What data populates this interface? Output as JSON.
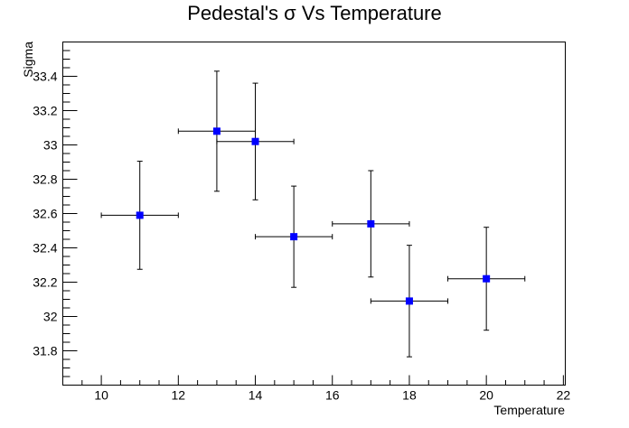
{
  "chart_data": {
    "type": "scatter",
    "title": "Pedestal's σ Vs Temperature",
    "xlabel": "Temperature",
    "ylabel": "Sigma",
    "xlim": [
      9,
      22.05
    ],
    "ylim": [
      31.6,
      33.6
    ],
    "xticks_major": [
      10,
      12,
      14,
      16,
      18,
      20,
      22
    ],
    "xtick_labels": [
      "10",
      "12",
      "14",
      "16",
      "18",
      "20",
      "22"
    ],
    "yticks_major": [
      31.8,
      32.0,
      32.2,
      32.4,
      32.6,
      32.8,
      33.0,
      33.2,
      33.4
    ],
    "ytick_labels": [
      "31.8",
      "32",
      "32.2",
      "32.4",
      "32.6",
      "32.8",
      "33",
      "33.2",
      "33.4"
    ],
    "grid": false,
    "legend": "none",
    "marker_color": "#0000ff",
    "series": [
      {
        "points": [
          {
            "x": 11,
            "y": 32.59,
            "xerr": 1,
            "yerr": 0.315
          },
          {
            "x": 13,
            "y": 33.08,
            "xerr": 1,
            "yerr": 0.35
          },
          {
            "x": 14,
            "y": 33.02,
            "xerr": 1,
            "yerr": 0.34
          },
          {
            "x": 15,
            "y": 32.465,
            "xerr": 1,
            "yerr": 0.295
          },
          {
            "x": 17,
            "y": 32.54,
            "xerr": 1,
            "yerr": 0.31
          },
          {
            "x": 18,
            "y": 32.09,
            "xerr": 1,
            "yerr": 0.325
          },
          {
            "x": 20,
            "y": 32.22,
            "xerr": 1,
            "yerr": 0.3
          }
        ]
      }
    ]
  }
}
